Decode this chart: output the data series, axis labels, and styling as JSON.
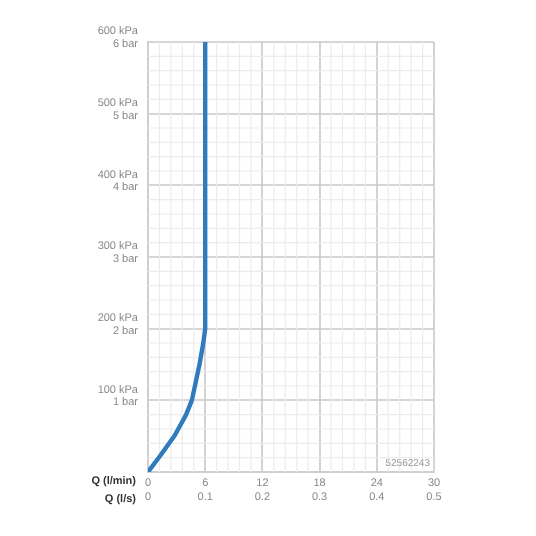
{
  "chart_data": {
    "type": "line",
    "xlabel": "Q (l/min)",
    "x2label": "Q (l/s)",
    "series": [
      {
        "color": "#2f7bbd",
        "x": [
          0,
          1.3,
          2.8,
          4.0,
          4.6,
          5.4,
          5.8,
          6,
          6
        ],
        "values": [
          0,
          23,
          51,
          80,
          100,
          150,
          180,
          200,
          600
        ]
      }
    ],
    "xlim": [
      0,
      30
    ],
    "xticks": [
      0,
      6,
      12,
      18,
      24,
      30
    ],
    "x2lim": [
      0,
      0.5
    ],
    "x2ticks": [
      0,
      0.1,
      0.2,
      0.3,
      0.4,
      0.5
    ],
    "ylim": [
      0,
      600
    ],
    "yticks": [
      {
        "value": 0,
        "label": null
      },
      {
        "value": 100,
        "label": "100 kPa"
      },
      {
        "value": 200,
        "label": "200 kPa"
      },
      {
        "value": 300,
        "label": "300 kPa"
      },
      {
        "value": 400,
        "label": "400 kPa"
      },
      {
        "value": 500,
        "label": "500 kPa"
      },
      {
        "value": 600,
        "label": "600 kPa"
      }
    ],
    "y2lim": [
      0,
      6
    ],
    "y2ticks": [
      {
        "value": 1,
        "label": "1 bar"
      },
      {
        "value": 2,
        "label": "2 bar"
      },
      {
        "value": 3,
        "label": "3 bar"
      },
      {
        "value": 4,
        "label": "4 bar"
      },
      {
        "value": 5,
        "label": "5 bar"
      },
      {
        "value": 6,
        "label": "6 bar"
      }
    ],
    "grid": true,
    "legend": false,
    "marker": "none",
    "line_style": "solid",
    "annotations": [
      "52562243"
    ]
  }
}
